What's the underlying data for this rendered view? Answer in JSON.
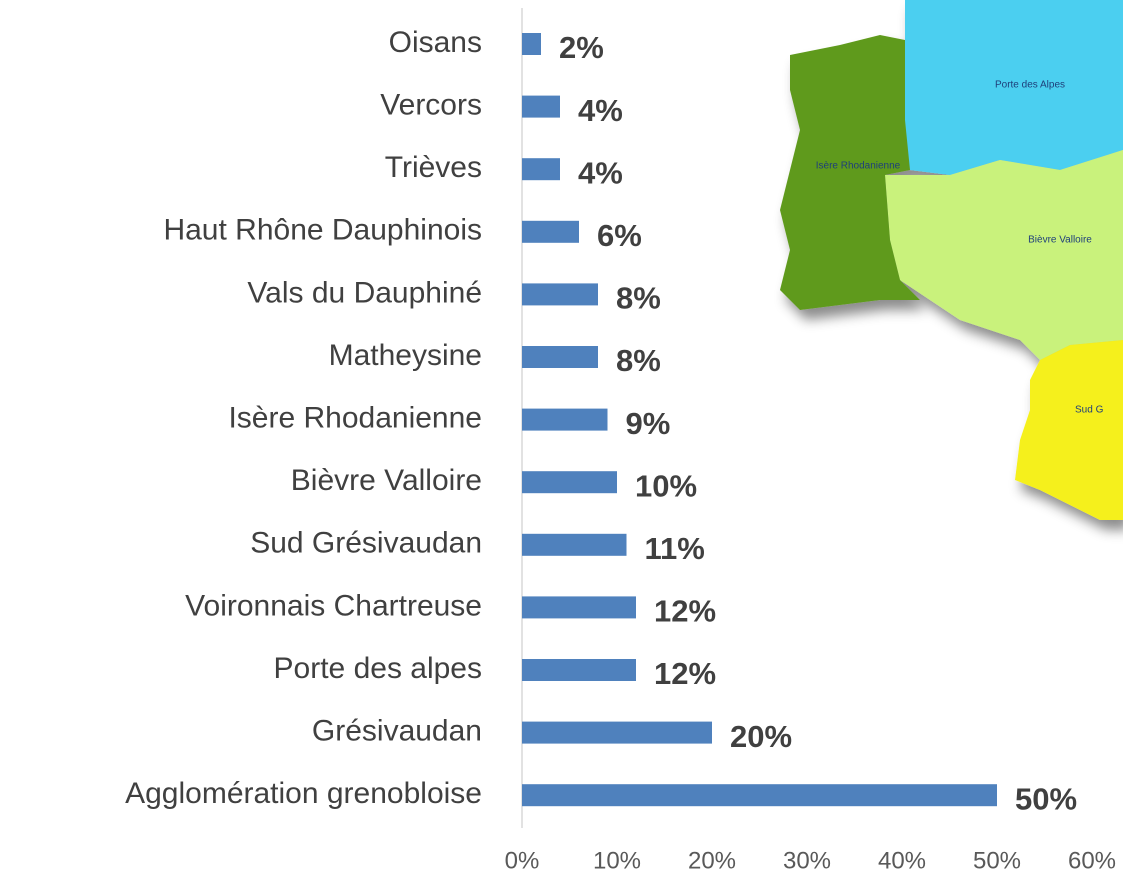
{
  "chart_data": {
    "type": "barh",
    "categories": [
      "Oisans",
      "Vercors",
      "Trièves",
      "Haut Rhône Dauphinois",
      "Vals du Dauphiné",
      "Matheysine",
      "Isère Rhodanienne",
      "Bièvre Valloire",
      "Sud Grésivaudan",
      "Voironnais Chartreuse",
      "Porte des alpes",
      "Grésivaudan",
      "Agglomération grenobloise"
    ],
    "values": [
      2,
      4,
      4,
      6,
      8,
      8,
      9,
      10,
      11,
      12,
      12,
      20,
      50
    ],
    "value_labels": [
      "2%",
      "4%",
      "4%",
      "6%",
      "8%",
      "8%",
      "9%",
      "10%",
      "11%",
      "12%",
      "12%",
      "20%",
      "50%"
    ],
    "color": "#4f81bd",
    "xlim": [
      0,
      60
    ],
    "xticks": [
      {
        "value": 0,
        "label": "0%"
      },
      {
        "value": 10,
        "label": "10%"
      },
      {
        "value": 20,
        "label": "20%"
      },
      {
        "value": 30,
        "label": "30%"
      },
      {
        "value": 40,
        "label": "40%"
      },
      {
        "value": 50,
        "label": "50%"
      },
      {
        "value": 60,
        "label": "60%"
      }
    ],
    "grid": false,
    "annotations": [
      "Porte des Alpes",
      "Isère Rhodanienne",
      "Bièvre Valloire",
      "Sud G"
    ]
  }
}
